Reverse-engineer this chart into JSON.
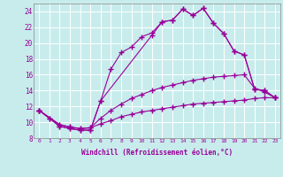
{
  "xlabel": "Windchill (Refroidissement éolien,°C)",
  "bg_color": "#c8ecec",
  "line_color": "#990099",
  "grid_color": "#ffffff",
  "xlim": [
    -0.5,
    23.5
  ],
  "ylim": [
    8,
    25
  ],
  "xticks": [
    0,
    1,
    2,
    3,
    4,
    5,
    6,
    7,
    8,
    9,
    10,
    11,
    12,
    13,
    14,
    15,
    16,
    17,
    18,
    19,
    20,
    21,
    22,
    23
  ],
  "yticks": [
    8,
    10,
    12,
    14,
    16,
    18,
    20,
    22,
    24
  ],
  "series": [
    {
      "x": [
        0,
        1,
        2,
        3,
        4,
        5,
        6,
        7,
        8,
        9,
        10,
        11,
        12,
        13,
        14,
        15,
        16,
        17,
        18,
        19,
        20,
        21,
        22,
        23
      ],
      "y": [
        11.5,
        10.5,
        9.5,
        9.2,
        9.0,
        9.0,
        12.7,
        16.7,
        18.8,
        19.5,
        20.8,
        21.3,
        22.7,
        22.9,
        24.3,
        23.5,
        24.4,
        22.5,
        21.2,
        19.0,
        18.5,
        14.2,
        14.0,
        13.1
      ]
    },
    {
      "x": [
        0,
        1,
        2,
        3,
        4,
        5,
        6,
        11,
        12,
        13,
        14,
        15,
        16,
        17,
        18,
        19,
        20,
        21,
        22,
        23
      ],
      "y": [
        11.5,
        10.5,
        9.5,
        9.2,
        9.0,
        9.0,
        12.7,
        21.0,
        22.7,
        22.9,
        24.3,
        23.5,
        24.4,
        22.5,
        21.2,
        19.0,
        18.5,
        14.2,
        14.0,
        13.1
      ]
    },
    {
      "x": [
        0,
        2,
        3,
        4,
        5,
        6,
        7,
        8,
        9,
        10,
        11,
        12,
        13,
        14,
        15,
        16,
        17,
        18,
        19,
        20,
        21,
        22,
        23
      ],
      "y": [
        11.5,
        9.7,
        9.4,
        9.2,
        9.3,
        10.5,
        11.5,
        12.3,
        13.0,
        13.5,
        14.0,
        14.4,
        14.7,
        15.0,
        15.3,
        15.5,
        15.7,
        15.8,
        15.9,
        16.0,
        14.3,
        13.8,
        13.1
      ]
    },
    {
      "x": [
        0,
        2,
        3,
        4,
        5,
        6,
        7,
        8,
        9,
        10,
        11,
        12,
        13,
        14,
        15,
        16,
        17,
        18,
        19,
        20,
        21,
        22,
        23
      ],
      "y": [
        11.5,
        9.7,
        9.4,
        9.2,
        9.3,
        9.8,
        10.2,
        10.7,
        11.0,
        11.3,
        11.5,
        11.7,
        11.9,
        12.1,
        12.3,
        12.4,
        12.5,
        12.6,
        12.7,
        12.8,
        13.0,
        13.1,
        13.1
      ]
    }
  ]
}
